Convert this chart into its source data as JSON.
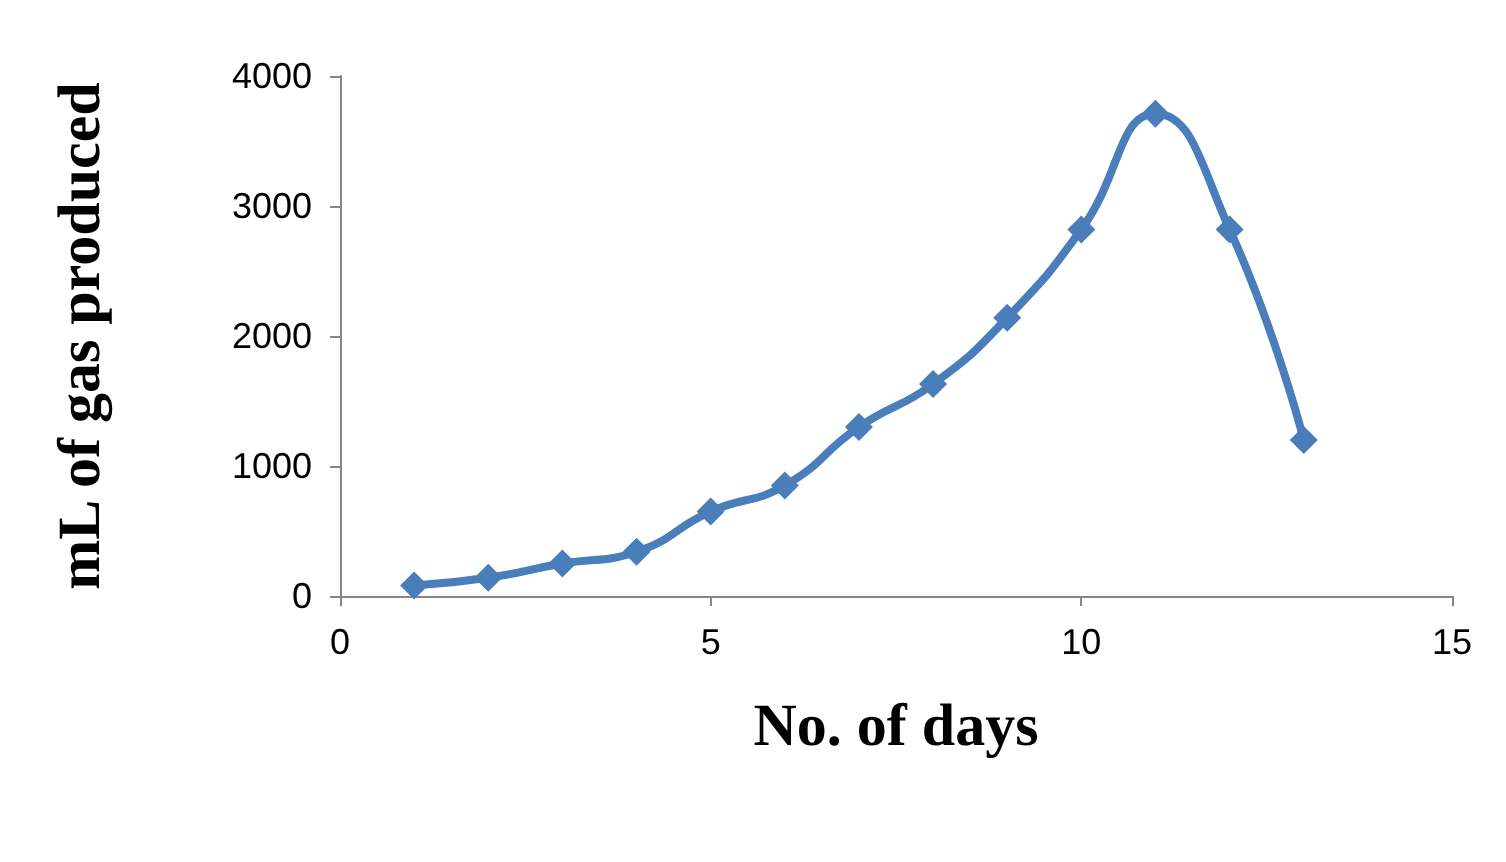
{
  "chart_data": {
    "type": "line",
    "xlabel": "No. of days",
    "ylabel": "mL of gas produced",
    "x": [
      1,
      2,
      3,
      4,
      5,
      6,
      7,
      8,
      9,
      10,
      11,
      12,
      13
    ],
    "series": [
      {
        "color": "#4a7ebb",
        "values": [
          80,
          140,
          250,
          340,
          650,
          850,
          1300,
          1630,
          2140,
          2820,
          3710,
          2820,
          1200
        ]
      }
    ],
    "xlim": [
      0,
      15
    ],
    "xticks": [
      0,
      5,
      10,
      15
    ],
    "ylim": [
      0,
      4000
    ],
    "yticks": [
      0,
      1000,
      2000,
      3000,
      4000
    ],
    "grid": false,
    "marker": "diamond",
    "line_style": "solid"
  }
}
